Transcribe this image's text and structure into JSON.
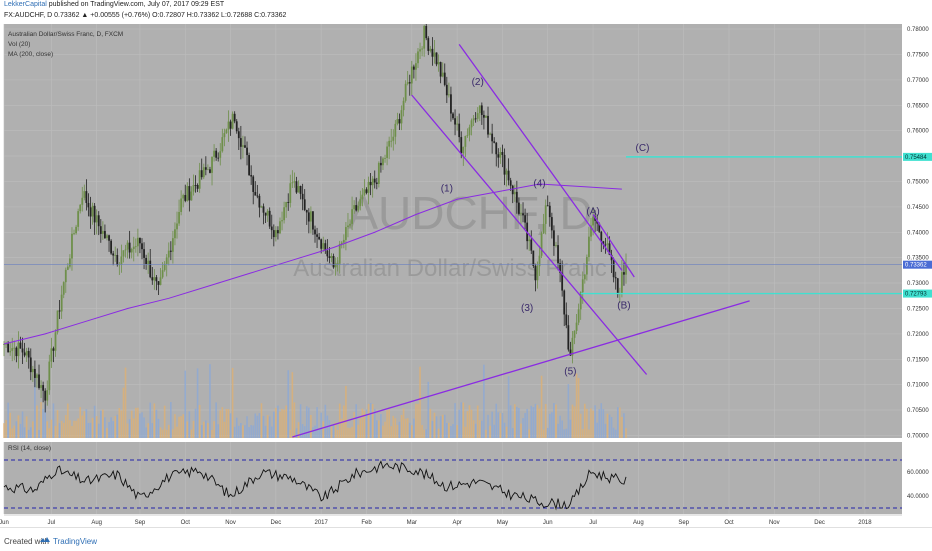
{
  "header": {
    "author": "LekkerCapital",
    "published": "published on TradingView.com, July 07, 2017 09:29 EST",
    "symbol_line": "FX:AUDCHF, D  0.73362 ▲ +0.00555 (+0.76%)  O:0.72807 H:0.73362 L:0.72688 C:0.73362"
  },
  "legend": {
    "title": "Australian Dollar/Swiss Franc, D, FXCM",
    "vol": "Vol (20)",
    "ma": "MA (200, close)",
    "rsi": "RSI (14, close)"
  },
  "watermark": {
    "symbol": "AUDCHF, D",
    "name": "Australian Dollar/Swiss Franc"
  },
  "footer": {
    "created": "Created with",
    "brand": "TradingView"
  },
  "colors": {
    "background": "#b0b0b0",
    "candle_up": "#6e8f4a",
    "candle_down": "#222222",
    "wave": "#8a2be2",
    "cyan": "#40e0d0",
    "volume_up": "#e0b070",
    "volume_down": "#8aa8d8",
    "rsi_line": "#111111",
    "rsi_band": "#2222aa"
  },
  "chart_data": {
    "type": "candlestick",
    "price_axis_ticks": [
      "0.78000",
      "0.77500",
      "0.77000",
      "0.76500",
      "0.76000",
      "0.75500",
      "0.75000",
      "0.74500",
      "0.74000",
      "0.73500",
      "0.73000",
      "0.72500",
      "0.72000",
      "0.71500",
      "0.71000",
      "0.70500",
      "0.70000"
    ],
    "price_range": [
      0.6995,
      0.781
    ],
    "last_price_label": "0.73362",
    "level_labels": [
      {
        "label": "0.75484",
        "value": 0.75484,
        "color": "#40e0d0"
      },
      {
        "label": "0.72793",
        "value": 0.72793,
        "color": "#40e0d0"
      }
    ],
    "rsi_ticks": [
      "60.0000",
      "40.0000"
    ],
    "rsi_range": [
      25,
      85
    ],
    "rsi_bands": [
      70,
      30
    ],
    "x_ticks": [
      "Jun",
      "Jul",
      "Aug",
      "Sep",
      "Oct",
      "Nov",
      "Dec",
      "2017",
      "Feb",
      "Mar",
      "Apr",
      "May",
      "Jun",
      "Jul",
      "Aug",
      "Sep",
      "Oct",
      "Nov",
      "Dec",
      "2018"
    ],
    "x_tick_day": [
      0,
      23,
      45,
      66,
      88,
      110,
      132,
      154,
      176,
      198,
      220,
      242,
      264,
      286,
      308,
      330,
      352,
      374,
      396,
      418
    ],
    "wave_labels": [
      {
        "text": "(1)",
        "day": 215,
        "price": 0.748
      },
      {
        "text": "(2)",
        "day": 230,
        "price": 0.769
      },
      {
        "text": "(3)",
        "day": 254,
        "price": 0.7245
      },
      {
        "text": "(4)",
        "day": 260,
        "price": 0.749
      },
      {
        "text": "(5)",
        "day": 275,
        "price": 0.712
      },
      {
        "text": "(A)",
        "day": 286,
        "price": 0.7435
      },
      {
        "text": "(B)",
        "day": 301,
        "price": 0.725
      },
      {
        "text": "(C)",
        "day": 310,
        "price": 0.756
      }
    ],
    "trend_lines": [
      {
        "from": [
          198,
          0.767
        ],
        "to": [
          312,
          0.712
        ]
      },
      {
        "from": [
          221,
          0.777
        ],
        "to": [
          300,
          0.7325
        ]
      },
      {
        "from": [
          286,
          0.7435
        ],
        "to": [
          306,
          0.7312
        ]
      },
      {
        "from": [
          140,
          0.6997
        ],
        "to": [
          362,
          0.7265
        ]
      }
    ],
    "series_points": [
      [
        0,
        0.718
      ],
      [
        10,
        0.7165
      ],
      [
        20,
        0.708
      ],
      [
        28,
        0.728
      ],
      [
        38,
        0.748
      ],
      [
        45,
        0.742
      ],
      [
        55,
        0.735
      ],
      [
        66,
        0.738
      ],
      [
        75,
        0.728
      ],
      [
        86,
        0.746
      ],
      [
        100,
        0.753
      ],
      [
        112,
        0.763
      ],
      [
        122,
        0.748
      ],
      [
        132,
        0.74
      ],
      [
        140,
        0.75
      ],
      [
        150,
        0.742
      ],
      [
        160,
        0.733
      ],
      [
        170,
        0.744
      ],
      [
        180,
        0.75
      ],
      [
        190,
        0.76
      ],
      [
        198,
        0.772
      ],
      [
        204,
        0.779
      ],
      [
        210,
        0.774
      ],
      [
        216,
        0.766
      ],
      [
        222,
        0.757
      ],
      [
        230,
        0.765
      ],
      [
        238,
        0.758
      ],
      [
        245,
        0.751
      ],
      [
        252,
        0.742
      ],
      [
        258,
        0.732
      ],
      [
        264,
        0.746
      ],
      [
        270,
        0.731
      ],
      [
        275,
        0.715
      ],
      [
        280,
        0.728
      ],
      [
        286,
        0.743
      ],
      [
        292,
        0.738
      ],
      [
        298,
        0.728
      ],
      [
        302,
        0.7336
      ]
    ],
    "ma_points": [
      [
        0,
        0.718
      ],
      [
        20,
        0.72
      ],
      [
        40,
        0.7225
      ],
      [
        60,
        0.725
      ],
      [
        80,
        0.727
      ],
      [
        100,
        0.7295
      ],
      [
        120,
        0.732
      ],
      [
        140,
        0.7345
      ],
      [
        160,
        0.737
      ],
      [
        180,
        0.74
      ],
      [
        200,
        0.7435
      ],
      [
        220,
        0.7465
      ],
      [
        240,
        0.748
      ],
      [
        260,
        0.7495
      ],
      [
        280,
        0.749
      ],
      [
        300,
        0.7485
      ]
    ],
    "rsi_points": [
      [
        0,
        48
      ],
      [
        15,
        45
      ],
      [
        25,
        62
      ],
      [
        40,
        52
      ],
      [
        55,
        58
      ],
      [
        66,
        38
      ],
      [
        80,
        56
      ],
      [
        95,
        62
      ],
      [
        110,
        40
      ],
      [
        125,
        60
      ],
      [
        140,
        55
      ],
      [
        155,
        38
      ],
      [
        170,
        58
      ],
      [
        185,
        66
      ],
      [
        200,
        62
      ],
      [
        215,
        48
      ],
      [
        230,
        52
      ],
      [
        245,
        42
      ],
      [
        260,
        35
      ],
      [
        275,
        33
      ],
      [
        285,
        60
      ],
      [
        295,
        55
      ],
      [
        302,
        52
      ]
    ]
  }
}
